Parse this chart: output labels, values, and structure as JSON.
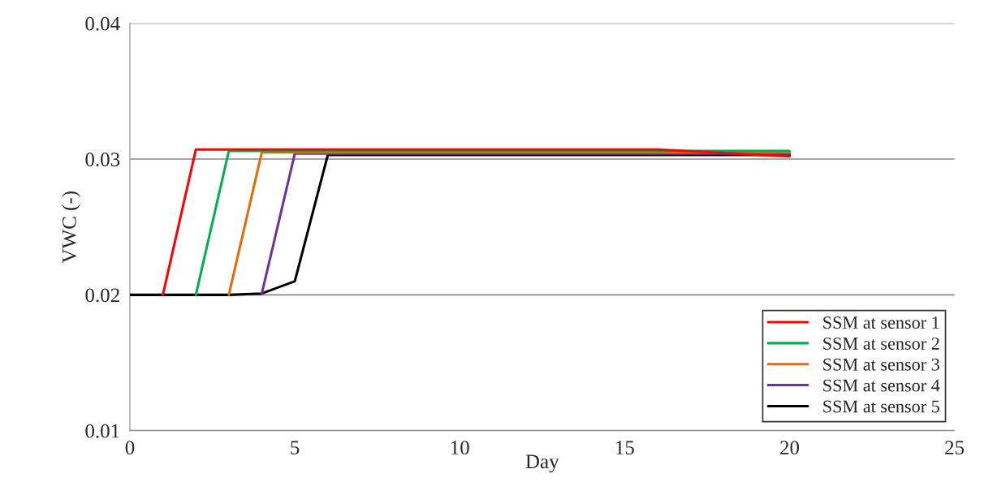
{
  "chart_data": {
    "type": "line",
    "xlabel": "Day",
    "ylabel": "VWC (-)",
    "x": [
      0,
      1,
      2,
      3,
      4,
      5,
      6,
      7,
      8,
      9,
      10,
      11,
      12,
      13,
      14,
      15,
      16,
      17,
      18,
      19,
      20
    ],
    "series": [
      {
        "name": "SSM at sensor 1",
        "color": "#ff0000",
        "x": [
          1,
          2,
          3,
          4,
          5,
          6,
          7,
          8,
          9,
          10,
          11,
          12,
          13,
          14,
          15,
          16,
          20
        ],
        "values": [
          0.02,
          0.0307,
          0.0307,
          0.0307,
          0.0307,
          0.0307,
          0.0307,
          0.0307,
          0.0307,
          0.0307,
          0.0307,
          0.0307,
          0.0307,
          0.0307,
          0.0307,
          0.0307,
          0.0302
        ]
      },
      {
        "name": "SSM at sensor 2",
        "color": "#00b050",
        "values": [
          null,
          null,
          0.02,
          0.0306,
          0.0306,
          0.0306,
          0.0306,
          0.0306,
          0.0306,
          0.0306,
          0.0306,
          0.0306,
          0.0306,
          0.0306,
          0.0306,
          0.0306,
          0.0306,
          0.0306,
          0.0306,
          0.0306,
          0.0306
        ]
      },
      {
        "name": "SSM at sensor 3",
        "color": "#e36c09",
        "values": [
          null,
          null,
          null,
          0.02,
          0.0305,
          0.0305,
          0.0305,
          0.0305,
          0.0305,
          0.0305,
          0.0305,
          0.0305,
          0.0305,
          0.0305,
          0.0305,
          0.0305,
          0.0305,
          0.0305,
          0.0305,
          0.0305,
          0.0305
        ]
      },
      {
        "name": "SSM at sensor 4",
        "color": "#7030a0",
        "values": [
          null,
          null,
          null,
          null,
          0.0201,
          0.0304,
          0.0304,
          0.0304,
          0.0304,
          0.0304,
          0.0304,
          0.0304,
          0.0304,
          0.0304,
          0.0304,
          0.0304,
          0.0304,
          0.0304,
          0.0304,
          0.0304,
          0.0304
        ]
      },
      {
        "name": "SSM at sensor 5",
        "color": "#000000",
        "values": [
          0.02,
          0.02,
          0.02,
          0.02,
          0.0201,
          0.021,
          0.0303,
          0.0303,
          0.0303,
          0.0303,
          0.0303,
          0.0303,
          0.0303,
          0.0303,
          0.0303,
          0.0303,
          0.0303,
          0.0303,
          0.0303,
          0.0303,
          0.0303
        ]
      }
    ],
    "xlim": [
      0,
      25
    ],
    "xticks": [
      0,
      5,
      10,
      15,
      20,
      25
    ],
    "ylim": [
      0.01,
      0.04
    ],
    "yticks": [
      {
        "value": 0.01,
        "label": "0.01"
      },
      {
        "value": 0.02,
        "label": "0.02"
      },
      {
        "value": 0.03,
        "label": "0.03"
      },
      {
        "value": 0.04,
        "label": "0.04"
      }
    ],
    "grid": "y",
    "legend": "bottom right",
    "marker": "none",
    "line_style": "solid"
  }
}
